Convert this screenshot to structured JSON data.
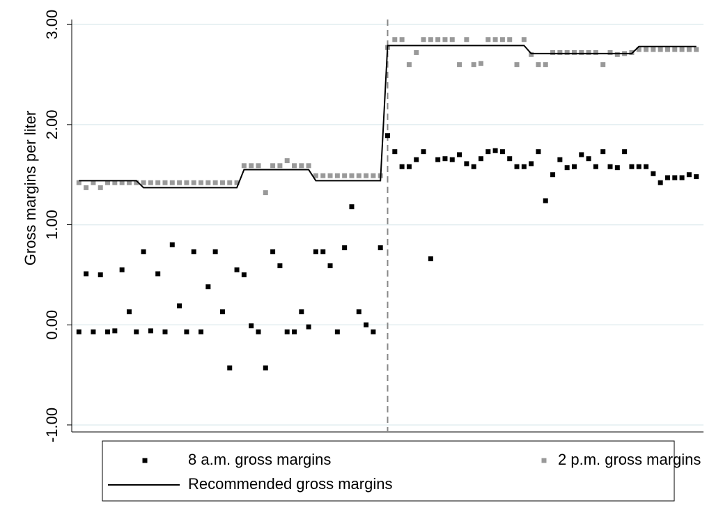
{
  "chart_data": {
    "type": "scatter",
    "y_label": "Gross margins per liter",
    "x": [
      1,
      2,
      3,
      4,
      5,
      6,
      7,
      8,
      9,
      10,
      11,
      12,
      13,
      14,
      15,
      16,
      17,
      18,
      19,
      20,
      21,
      22,
      23,
      24,
      25,
      26,
      27,
      28,
      29,
      30,
      31,
      32,
      33,
      34,
      35,
      36,
      37,
      38,
      39,
      40,
      41,
      42,
      43,
      44,
      45,
      46,
      47,
      48,
      49,
      50,
      51,
      52,
      53,
      54,
      55,
      56,
      57,
      58,
      59,
      60,
      61,
      62,
      63,
      64,
      65,
      66,
      67,
      68,
      69,
      70,
      71,
      72,
      73,
      74,
      75,
      76,
      77,
      78,
      79,
      80,
      81,
      82,
      83,
      84,
      85,
      86,
      87
    ],
    "xlim": [
      0,
      88
    ],
    "ylim": [
      -1.07,
      3.05
    ],
    "yticks": [
      {
        "value": -1,
        "label": "-1.00"
      },
      {
        "value": 0,
        "label": "0.00"
      },
      {
        "value": 1,
        "label": "1.00"
      },
      {
        "value": 2,
        "label": "2.00"
      },
      {
        "value": 3,
        "label": "3.00"
      }
    ],
    "grid": true,
    "vline": 44,
    "legend": "bottom",
    "series": [
      {
        "name": "8 a.m. gross margins",
        "mode": "markers",
        "color": "#000000",
        "values": [
          -0.07,
          0.51,
          -0.07,
          0.5,
          -0.07,
          -0.06,
          0.55,
          0.13,
          -0.07,
          0.73,
          -0.06,
          0.51,
          -0.07,
          0.8,
          0.19,
          -0.07,
          0.73,
          -0.07,
          0.38,
          0.73,
          0.13,
          -0.43,
          0.55,
          0.5,
          -0.01,
          -0.07,
          -0.43,
          0.73,
          0.59,
          -0.07,
          -0.07,
          0.13,
          -0.02,
          0.73,
          0.73,
          0.59,
          -0.07,
          0.77,
          1.18,
          0.13,
          0.0,
          -0.07,
          0.77,
          1.89,
          1.73,
          1.58,
          1.58,
          1.65,
          1.73,
          0.66,
          1.65,
          1.66,
          1.65,
          1.7,
          1.61,
          1.58,
          1.66,
          1.73,
          1.74,
          1.73,
          1.66,
          1.58,
          1.58,
          1.61,
          1.73,
          1.24,
          1.5,
          1.65,
          1.57,
          1.58,
          1.7,
          1.66,
          1.58,
          1.73,
          1.58,
          1.57,
          1.73,
          1.58,
          1.58,
          1.58,
          1.51,
          1.42,
          1.47,
          1.47,
          1.47,
          1.5,
          1.48
        ]
      },
      {
        "name": "2 p.m. gross margins",
        "mode": "markers",
        "color": "#999999",
        "values": [
          1.42,
          1.37,
          1.42,
          1.37,
          1.42,
          1.42,
          1.42,
          1.42,
          1.42,
          1.42,
          1.42,
          1.42,
          1.42,
          1.42,
          1.42,
          1.42,
          1.42,
          1.42,
          1.42,
          1.42,
          1.42,
          1.42,
          1.42,
          1.59,
          1.59,
          1.59,
          1.32,
          1.59,
          1.59,
          1.64,
          1.59,
          1.59,
          1.59,
          1.49,
          1.49,
          1.49,
          1.49,
          1.49,
          1.49,
          1.49,
          1.49,
          1.49,
          1.49,
          2.77,
          2.85,
          2.85,
          2.6,
          2.72,
          2.85,
          2.85,
          2.85,
          2.85,
          2.85,
          2.6,
          2.85,
          2.6,
          2.61,
          2.85,
          2.85,
          2.85,
          2.85,
          2.6,
          2.85,
          2.7,
          2.6,
          2.6,
          2.72,
          2.72,
          2.72,
          2.72,
          2.72,
          2.72,
          2.72,
          2.6,
          2.72,
          2.7,
          2.71,
          2.72,
          2.75,
          2.75,
          2.75,
          2.75,
          2.75,
          2.75,
          2.75,
          2.75,
          2.75
        ]
      },
      {
        "name": "Recommended gross margins",
        "mode": "line",
        "color": "#000000",
        "values": [
          1.44,
          1.44,
          1.44,
          1.44,
          1.44,
          1.44,
          1.44,
          1.44,
          1.44,
          1.37,
          1.37,
          1.37,
          1.37,
          1.37,
          1.37,
          1.37,
          1.37,
          1.37,
          1.37,
          1.37,
          1.37,
          1.37,
          1.37,
          1.55,
          1.55,
          1.55,
          1.55,
          1.55,
          1.55,
          1.55,
          1.55,
          1.55,
          1.55,
          1.44,
          1.44,
          1.44,
          1.44,
          1.44,
          1.44,
          1.44,
          1.44,
          1.44,
          1.44,
          2.79,
          2.79,
          2.79,
          2.79,
          2.79,
          2.79,
          2.79,
          2.79,
          2.79,
          2.79,
          2.79,
          2.79,
          2.79,
          2.79,
          2.79,
          2.79,
          2.79,
          2.79,
          2.79,
          2.79,
          2.71,
          2.71,
          2.71,
          2.71,
          2.71,
          2.71,
          2.71,
          2.71,
          2.71,
          2.71,
          2.71,
          2.71,
          2.71,
          2.71,
          2.71,
          2.78,
          2.78,
          2.78,
          2.78,
          2.78,
          2.78,
          2.78,
          2.78,
          2.78
        ]
      }
    ]
  }
}
